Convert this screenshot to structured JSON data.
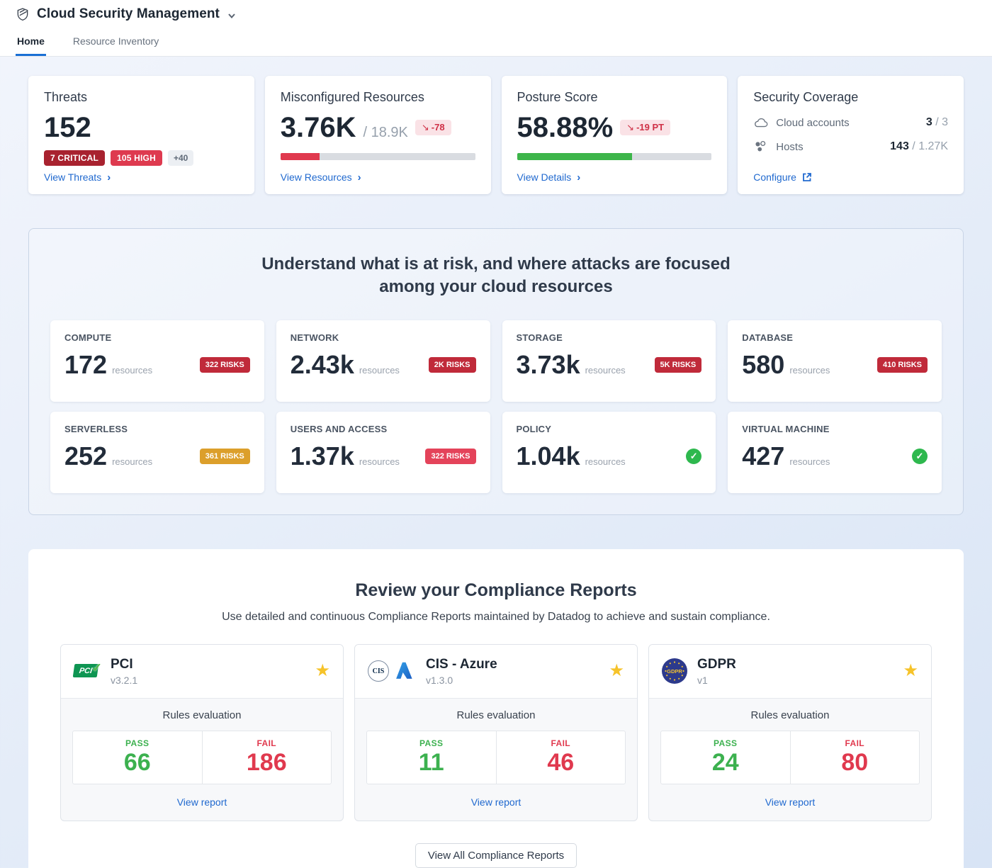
{
  "icons": {
    "star": "★",
    "check": "✓",
    "chevron_right": "›",
    "trend_down": "↘"
  },
  "header": {
    "title": "Cloud Security Management"
  },
  "tabs": [
    {
      "label": "Home"
    },
    {
      "label": "Resource Inventory"
    }
  ],
  "summary": {
    "threats": {
      "title": "Threats",
      "count": "152",
      "badges": [
        {
          "label": "7 CRITICAL",
          "bg": "#a8222f"
        },
        {
          "label": "105 HIGH",
          "bg": "#de3a4f"
        }
      ],
      "more": "+40",
      "link": "View Threats"
    },
    "misconfigured": {
      "title": "Misconfigured Resources",
      "value": "3.76K",
      "total": "/ 18.9K",
      "trend": "-78",
      "progress_pct": 20,
      "bar_color": "#e0394e",
      "link": "View Resources"
    },
    "posture": {
      "title": "Posture Score",
      "value": "58.88%",
      "trend": "-19 PT",
      "progress_pct": 59,
      "bar_color": "#3db54a",
      "link": "View Details"
    },
    "coverage": {
      "title": "Security Coverage",
      "rows": [
        {
          "label": "Cloud accounts",
          "value": "3",
          "total": "/ 3"
        },
        {
          "label": "Hosts",
          "value": "143",
          "total": "/ 1.27K"
        }
      ],
      "link": "Configure"
    }
  },
  "risk_section": {
    "title_line1": "Understand what is at risk, and where attacks are focused",
    "title_line2": "among your cloud resources",
    "cards": [
      {
        "category": "COMPUTE",
        "count": "172",
        "unit": "resources",
        "badge": "322 RISKS",
        "badge_bg": "#c02a3a"
      },
      {
        "category": "NETWORK",
        "count": "2.43k",
        "unit": "resources",
        "badge": "2K RISKS",
        "badge_bg": "#c02a3a"
      },
      {
        "category": "STORAGE",
        "count": "3.73k",
        "unit": "resources",
        "badge": "5K RISKS",
        "badge_bg": "#c02a3a"
      },
      {
        "category": "DATABASE",
        "count": "580",
        "unit": "resources",
        "badge": "410 RISKS",
        "badge_bg": "#c02a3a"
      },
      {
        "category": "SERVERLESS",
        "count": "252",
        "unit": "resources",
        "badge": "361 RISKS",
        "badge_bg": "#dc9f2b"
      },
      {
        "category": "USERS AND ACCESS",
        "count": "1.37k",
        "unit": "resources",
        "badge": "322 RISKS",
        "badge_bg": "#e4435a"
      },
      {
        "category": "POLICY",
        "count": "1.04k",
        "unit": "resources",
        "status": "ok"
      },
      {
        "category": "VIRTUAL MACHINE",
        "count": "427",
        "unit": "resources",
        "status": "ok"
      }
    ]
  },
  "compliance": {
    "title": "Review your Compliance Reports",
    "subtitle": "Use detailed and continuous Compliance Reports maintained by Datadog to achieve and sustain compliance.",
    "rules_label": "Rules evaluation",
    "pass_label": "PASS",
    "fail_label": "FAIL",
    "view_report": "View report",
    "reports": [
      {
        "name": "PCI",
        "version": "v3.2.1",
        "pass": "66",
        "fail": "186",
        "logo_text": "PCI"
      },
      {
        "name": "CIS - Azure",
        "version": "v1.3.0",
        "pass": "11",
        "fail": "46",
        "logo_text": "CIS"
      },
      {
        "name": "GDPR",
        "version": "v1",
        "pass": "24",
        "fail": "80",
        "logo_text": "GDPR"
      }
    ],
    "view_all": "View All Compliance Reports"
  }
}
